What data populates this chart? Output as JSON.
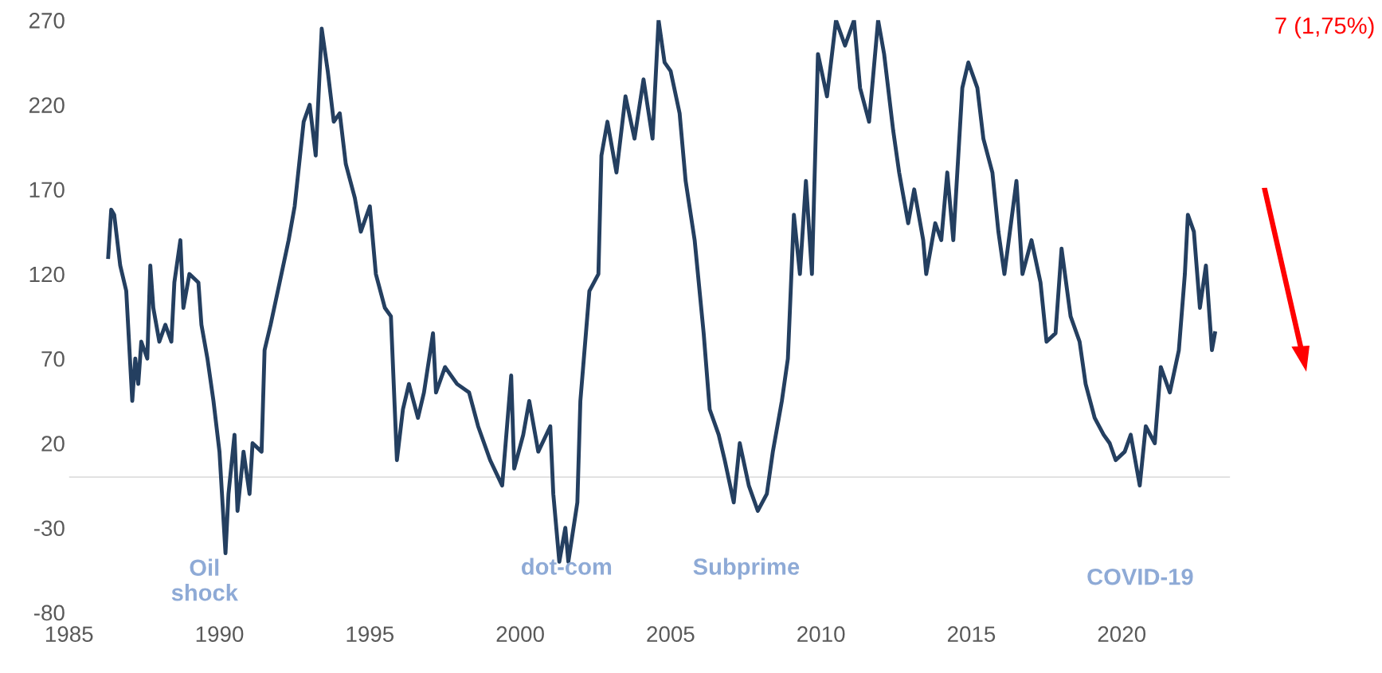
{
  "chart_data": {
    "type": "line",
    "xlim": [
      1985,
      2023.6
    ],
    "xticks": [
      1985,
      1990,
      1995,
      2000,
      2005,
      2010,
      2015,
      2020
    ],
    "ylim": [
      -80,
      270
    ],
    "yticks": [
      -80,
      -30,
      20,
      70,
      120,
      170,
      220,
      270
    ],
    "grid": false,
    "legend": false,
    "marker": "none",
    "line_style": "solid",
    "ref_lines": [
      {
        "axis": "y",
        "value": 0,
        "label": null,
        "color": "#d9d9d9"
      }
    ],
    "annotations": [
      "Oil\nshock",
      "dot-com",
      "Subprime",
      "COVID-19",
      "7 (1,75%)"
    ],
    "series": [
      {
        "color": "#243f60",
        "x": [
          1986.3,
          1986.4,
          1986.5,
          1986.7,
          1986.9,
          1987.1,
          1987.2,
          1987.3,
          1987.4,
          1987.6,
          1987.7,
          1987.8,
          1988.0,
          1988.2,
          1988.4,
          1988.5,
          1988.7,
          1988.8,
          1989.0,
          1989.3,
          1989.4,
          1989.6,
          1989.8,
          1990.0,
          1990.2,
          1990.3,
          1990.5,
          1990.6,
          1990.8,
          1991.0,
          1991.1,
          1991.4,
          1991.5,
          1991.7,
          1992.0,
          1992.3,
          1992.5,
          1992.8,
          1993.0,
          1993.2,
          1993.4,
          1993.6,
          1993.8,
          1994.0,
          1994.2,
          1994.5,
          1994.7,
          1995.0,
          1995.2,
          1995.5,
          1995.7,
          1995.9,
          1996.1,
          1996.3,
          1996.6,
          1996.8,
          1997.1,
          1997.2,
          1997.5,
          1997.9,
          1998.3,
          1998.6,
          1999.0,
          1999.4,
          1999.7,
          1999.8,
          2000.1,
          2000.3,
          2000.6,
          2001.0,
          2001.1,
          2001.3,
          2001.5,
          2001.6,
          2001.9,
          2002.0,
          2002.3,
          2002.6,
          2002.7,
          2002.9,
          2003.2,
          2003.5,
          2003.8,
          2004.1,
          2004.4,
          2004.6,
          2004.8,
          2005.0,
          2005.3,
          2005.5,
          2005.8,
          2006.1,
          2006.3,
          2006.6,
          2006.8,
          2007.1,
          2007.3,
          2007.6,
          2007.9,
          2008.2,
          2008.4,
          2008.7,
          2008.9,
          2009.1,
          2009.3,
          2009.5,
          2009.7,
          2009.9,
          2010.2,
          2010.5,
          2010.8,
          2011.1,
          2011.3,
          2011.6,
          2011.9,
          2012.1,
          2012.4,
          2012.6,
          2012.9,
          2013.1,
          2013.4,
          2013.5,
          2013.8,
          2014.0,
          2014.2,
          2014.4,
          2014.7,
          2014.9,
          2015.2,
          2015.4,
          2015.7,
          2015.9,
          2016.1,
          2016.5,
          2016.7,
          2017.0,
          2017.3,
          2017.5,
          2017.8,
          2018.0,
          2018.3,
          2018.6,
          2018.8,
          2019.1,
          2019.4,
          2019.6,
          2019.8,
          2020.1,
          2020.3,
          2020.6,
          2020.8,
          2021.1,
          2021.3,
          2021.6,
          2021.9,
          2022.1,
          2022.2,
          2022.4,
          2022.6,
          2022.8,
          2023.0,
          2023.1
        ],
        "values": [
          130,
          158,
          155,
          125,
          110,
          45,
          70,
          55,
          80,
          70,
          125,
          100,
          80,
          90,
          80,
          115,
          140,
          100,
          120,
          115,
          90,
          70,
          45,
          15,
          -45,
          -10,
          25,
          -20,
          15,
          -10,
          20,
          15,
          75,
          90,
          115,
          140,
          160,
          210,
          220,
          190,
          265,
          240,
          210,
          215,
          185,
          165,
          145,
          160,
          120,
          100,
          95,
          10,
          40,
          55,
          35,
          50,
          85,
          50,
          65,
          55,
          50,
          30,
          10,
          -5,
          60,
          5,
          25,
          45,
          15,
          30,
          -10,
          -50,
          -30,
          -50,
          -15,
          45,
          110,
          120,
          190,
          210,
          180,
          225,
          200,
          235,
          200,
          270,
          245,
          240,
          215,
          175,
          140,
          85,
          40,
          25,
          10,
          -15,
          20,
          -5,
          -20,
          -10,
          15,
          45,
          70,
          155,
          120,
          175,
          120,
          250,
          225,
          270,
          255,
          270,
          230,
          210,
          270,
          250,
          205,
          180,
          150,
          170,
          140,
          120,
          150,
          140,
          180,
          140,
          230,
          245,
          230,
          200,
          180,
          145,
          120,
          175,
          120,
          140,
          115,
          80,
          85,
          135,
          95,
          80,
          55,
          35,
          25,
          20,
          10,
          15,
          25,
          -5,
          30,
          20,
          65,
          50,
          75,
          120,
          155,
          145,
          100,
          125,
          75,
          85
        ]
      }
    ]
  }
}
